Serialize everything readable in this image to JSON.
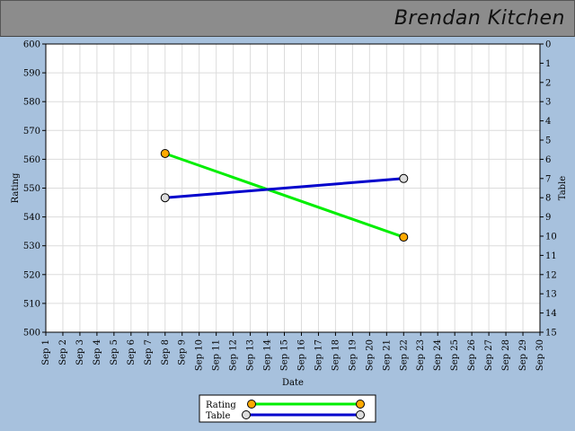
{
  "header": {
    "title": "Brendan Kitchen"
  },
  "colors": {
    "background": "#a7c1dd",
    "header": "#8c8c8c",
    "plot_background": "#ffffff",
    "grid": "#dcdcdc",
    "rating_line": "#00ee00",
    "rating_marker": "#ffaa00",
    "table_line": "#0000cc",
    "table_marker": "#dddddd"
  },
  "chart_data": {
    "type": "line",
    "xlabel": "Date",
    "ylabel": "Rating",
    "y2label": "Table",
    "categories": [
      "Sep 1",
      "Sep 2",
      "Sep 3",
      "Sep 4",
      "Sep 5",
      "Sep 6",
      "Sep 7",
      "Sep 8",
      "Sep 9",
      "Sep 10",
      "Sep 11",
      "Sep 12",
      "Sep 13",
      "Sep 14",
      "Sep 15",
      "Sep 16",
      "Sep 17",
      "Sep 18",
      "Sep 19",
      "Sep 20",
      "Sep 21",
      "Sep 22",
      "Sep 23",
      "Sep 24",
      "Sep 25",
      "Sep 26",
      "Sep 27",
      "Sep 28",
      "Sep 29",
      "Sep 30"
    ],
    "ylim": [
      500,
      600
    ],
    "yticks": [
      500,
      510,
      520,
      530,
      540,
      550,
      560,
      570,
      580,
      590,
      600
    ],
    "y2lim": [
      15,
      0
    ],
    "y2ticks": [
      0,
      1,
      2,
      3,
      4,
      5,
      6,
      7,
      8,
      9,
      10,
      11,
      12,
      13,
      14,
      15
    ],
    "grid": true,
    "legend_position": "bottom-center",
    "series": [
      {
        "name": "Rating",
        "axis": "left",
        "x": [
          "Sep 8",
          "Sep 22"
        ],
        "values": [
          562,
          533
        ]
      },
      {
        "name": "Table",
        "axis": "right",
        "x": [
          "Sep 8",
          "Sep 22"
        ],
        "values": [
          8,
          7
        ]
      }
    ]
  }
}
